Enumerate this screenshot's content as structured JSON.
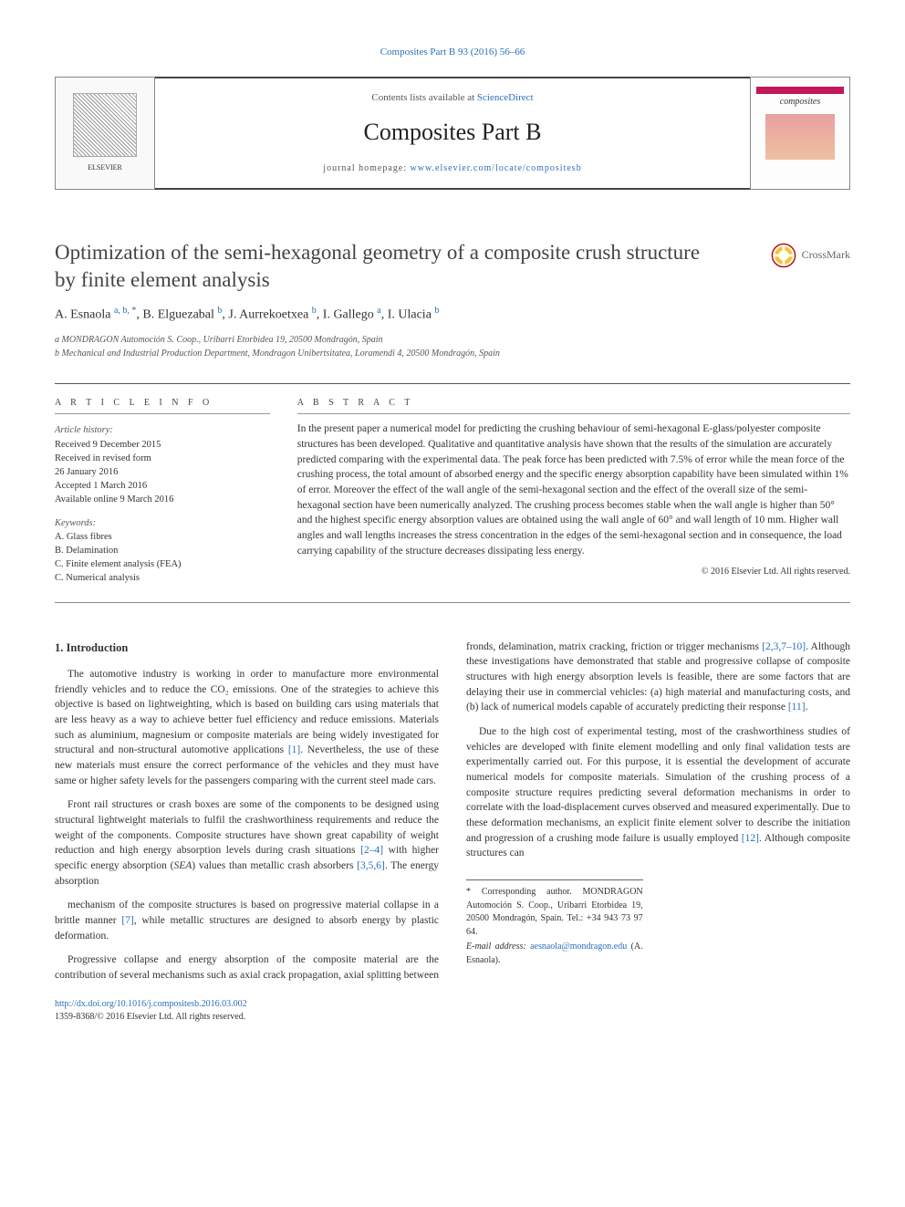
{
  "top_citation_link": "Composites Part B 93 (2016) 56–66",
  "header": {
    "contents_line_prefix": "Contents lists available at ",
    "contents_line_link": "ScienceDirect",
    "journal_title": "Composites Part B",
    "homepage_prefix": "journal homepage: ",
    "homepage_link": "www.elsevier.com/locate/compositesb",
    "publisher_name": "ELSEVIER",
    "cover_word": "composites"
  },
  "crossmark_label": "CrossMark",
  "article": {
    "title": "Optimization of the semi-hexagonal geometry of a composite crush structure by finite element analysis",
    "authors_html": "A. Esnaola <sup>a, b, *</sup>, B. Elguezabal <sup>b</sup>, J. Aurrekoetxea <sup>b</sup>, I. Gallego <sup>a</sup>, I. Ulacia <sup>b</sup>",
    "affiliations": [
      "a MONDRAGON Automoción S. Coop., Uribarri Etorbidea 19, 20500 Mondragón, Spain",
      "b Mechanical and Industrial Production Department, Mondragon Unibertsitatea, Loramendi 4, 20500 Mondragón, Spain"
    ]
  },
  "article_info": {
    "heading": "A R T I C L E  I N F O",
    "history_label": "Article history:",
    "history": [
      "Received 9 December 2015",
      "Received in revised form",
      "26 January 2016",
      "Accepted 1 March 2016",
      "Available online 9 March 2016"
    ],
    "keywords_label": "Keywords:",
    "keywords": [
      "A. Glass fibres",
      "B. Delamination",
      "C. Finite element analysis (FEA)",
      "C. Numerical analysis"
    ]
  },
  "abstract": {
    "heading": "A B S T R A C T",
    "text": "In the present paper a numerical model for predicting the crushing behaviour of semi-hexagonal E-glass/polyester composite structures has been developed. Qualitative and quantitative analysis have shown that the results of the simulation are accurately predicted comparing with the experimental data. The peak force has been predicted with 7.5% of error while the mean force of the crushing process, the total amount of absorbed energy and the specific energy absorption capability have been simulated within 1% of error. Moreover the effect of the wall angle of the semi-hexagonal section and the effect of the overall size of the semi-hexagonal section have been numerically analyzed. The crushing process becomes stable when the wall angle is higher than 50° and the highest specific energy absorption values are obtained using the wall angle of 60° and wall length of 10 mm. Higher wall angles and wall lengths increases the stress concentration in the edges of the semi-hexagonal section and in consequence, the load carrying capability of the structure decreases dissipating less energy.",
    "copyright": "© 2016 Elsevier Ltd. All rights reserved."
  },
  "body": {
    "section_heading": "1. Introduction",
    "paragraphs": [
      "The automotive industry is working in order to manufacture more environmental friendly vehicles and to reduce the CO₂ emissions. One of the strategies to achieve this objective is based on lightweighting, which is based on building cars using materials that are less heavy as a way to achieve better fuel efficiency and reduce emissions. Materials such as aluminium, magnesium or composite materials are being widely investigated for structural and non-structural automotive applications <span class='ref'>[1]</span>. Nevertheless, the use of these new materials must ensure the correct performance of the vehicles and they must have same or higher safety levels for the passengers comparing with the current steel made cars.",
      "Front rail structures or crash boxes are some of the components to be designed using structural lightweight materials to fulfil the crashworthiness requirements and reduce the weight of the components. Composite structures have shown great capability of weight reduction and high energy absorption levels during crash situations <span class='ref'>[2–4]</span> with higher specific energy absorption (<i>SEA</i>) values than metallic crash absorbers <span class='ref'>[3,5,6]</span>. The energy absorption",
      "mechanism of the composite structures is based on progressive material collapse in a brittle manner <span class='ref'>[7]</span>, while metallic structures are designed to absorb energy by plastic deformation.",
      "Progressive collapse and energy absorption of the composite material are the contribution of several mechanisms such as axial crack propagation, axial splitting between fronds, delamination, matrix cracking, friction or trigger mechanisms <span class='ref'>[2,3,7–10]</span>. Although these investigations have demonstrated that stable and progressive collapse of composite structures with high energy absorption levels is feasible, there are some factors that are delaying their use in commercial vehicles: (a) high material and manufacturing costs, and (b) lack of numerical models capable of accurately predicting their response <span class='ref'>[11]</span>.",
      "Due to the high cost of experimental testing, most of the crashworthiness studies of vehicles are developed with finite element modelling and only final validation tests are experimentally carried out. For this purpose, it is essential the development of accurate numerical models for composite materials. Simulation of the crushing process of a composite structure requires predicting several deformation mechanisms in order to correlate with the load-displacement curves observed and measured experimentally. Due to these deformation mechanisms, an explicit finite element solver to describe the initiation and progression of a crushing mode failure is usually employed <span class='ref'>[12]</span>. Although composite structures can"
    ]
  },
  "footnote": {
    "corresponding": "* Corresponding author. MONDRAGON Automoción S. Coop., Uribarri Etorbidea 19, 20500 Mondragón, Spain. Tel.: +34 943 73 97 64.",
    "email_label": "E-mail address: ",
    "email": "aesnaola@mondragon.edu",
    "email_suffix": " (A. Esnaola)."
  },
  "footer": {
    "doi": "http://dx.doi.org/10.1016/j.compositesb.2016.03.002",
    "issn_line": "1359-8368/© 2016 Elsevier Ltd. All rights reserved."
  },
  "colors": {
    "link": "#2a6ebb",
    "rule": "#555555",
    "cover_accent": "#c2185b"
  }
}
